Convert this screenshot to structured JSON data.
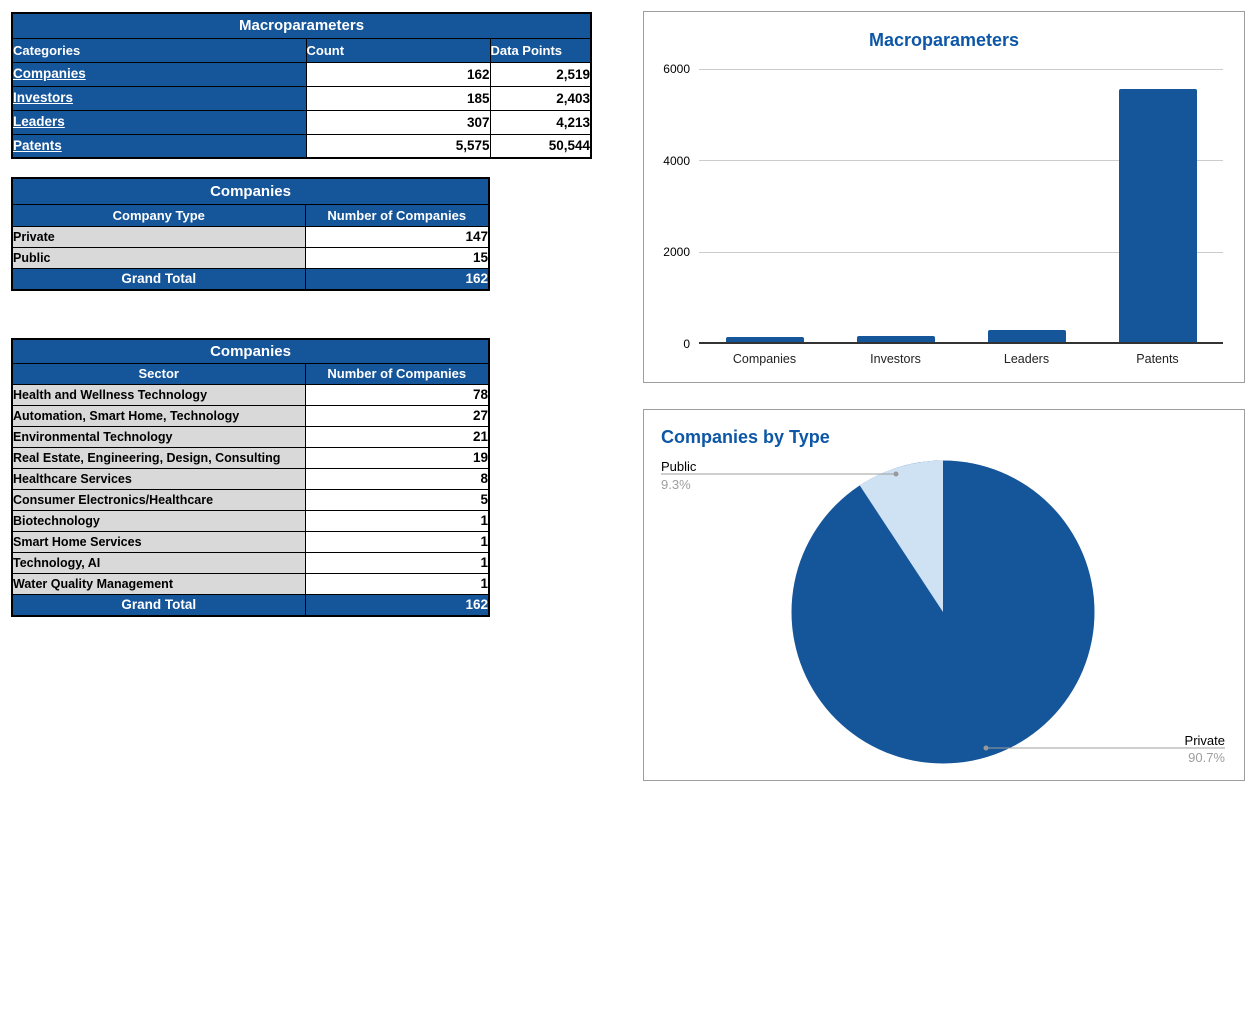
{
  "colors": {
    "table_header_blue": "#15559a",
    "chart_title_blue": "#0d57a6",
    "pie_private_blue": "#15559a",
    "pie_public_light_blue": "#cfe2f3",
    "row_grey": "#d9d9d9"
  },
  "tables": {
    "macroparameters": {
      "title": "Macroparameters",
      "columns": [
        "Categories",
        "Count",
        "Data Points"
      ],
      "rows": [
        {
          "category": "Companies",
          "count": "162",
          "data_points": "2,519"
        },
        {
          "category": "Investors",
          "count": "185",
          "data_points": "2,403"
        },
        {
          "category": "Leaders",
          "count": "307",
          "data_points": "4,213"
        },
        {
          "category": "Patents",
          "count": "5,575",
          "data_points": "50,544"
        }
      ]
    },
    "companies_by_type": {
      "title": "Companies",
      "columns": [
        "Company Type",
        "Number of Companies"
      ],
      "rows": [
        {
          "label": "Private",
          "value": "147"
        },
        {
          "label": "Public",
          "value": "15"
        }
      ],
      "total_label": "Grand Total",
      "total_value": "162"
    },
    "companies_by_sector": {
      "title": "Companies",
      "columns": [
        "Sector",
        "Number of Companies"
      ],
      "rows": [
        {
          "label": "Health and Wellness Technology",
          "value": "78"
        },
        {
          "label": "Automation, Smart Home, Technology",
          "value": "27"
        },
        {
          "label": "Environmental Technology",
          "value": "21"
        },
        {
          "label": "Real Estate, Engineering, Design, Consulting",
          "value": "19"
        },
        {
          "label": "Healthcare Services",
          "value": "8"
        },
        {
          "label": "Consumer Electronics/Healthcare",
          "value": "5"
        },
        {
          "label": "Biotechnology",
          "value": "1"
        },
        {
          "label": "Smart Home Services",
          "value": "1"
        },
        {
          "label": "Technology, AI",
          "value": "1"
        },
        {
          "label": "Water Quality Management",
          "value": "1"
        }
      ],
      "total_label": "Grand Total",
      "total_value": "162"
    }
  },
  "chart_data": [
    {
      "type": "bar",
      "title": "Macroparameters",
      "categories": [
        "Companies",
        "Investors",
        "Leaders",
        "Patents"
      ],
      "values": [
        162,
        185,
        307,
        5575
      ],
      "ylim": [
        0,
        6000
      ],
      "yticks": [
        6000,
        4000,
        2000,
        0
      ],
      "tick_labels": [
        "6000",
        "4000",
        "2000",
        "0"
      ],
      "bar_color": "#15559a",
      "grid": true,
      "legend": "none"
    },
    {
      "type": "pie",
      "title": "Companies by Type",
      "labels": [
        "Private",
        "Public"
      ],
      "values": [
        147,
        15
      ],
      "percent_labels": [
        "90.7%",
        "9.3%"
      ],
      "colors": [
        "#15559a",
        "#cfe2f3"
      ],
      "legend": "callouts"
    }
  ]
}
